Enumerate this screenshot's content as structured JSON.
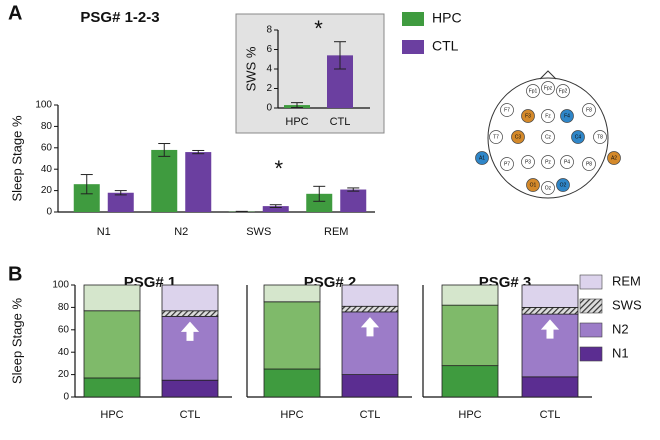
{
  "panel_labels": [
    "A",
    "B"
  ],
  "chart_data": [
    {
      "type": "grouped_bar",
      "title": "PSG# 1-2-3",
      "ylabel": "Sleep Stage %",
      "categories": [
        "N1",
        "N2",
        "SWS",
        "REM"
      ],
      "series": [
        {
          "name": "HPC",
          "color": "#3f9b3f",
          "values": [
            26,
            58,
            0.3,
            17
          ],
          "errors": [
            9,
            6,
            0.3,
            7
          ]
        },
        {
          "name": "CTL",
          "color": "#6b3fa0",
          "values": [
            18,
            56,
            5.5,
            21
          ],
          "errors": [
            2,
            1.5,
            1.3,
            1.5
          ]
        }
      ],
      "ylim": [
        0,
        100
      ],
      "yticks": [
        0,
        20,
        40,
        60,
        80,
        100
      ],
      "annotation": "*"
    },
    {
      "type": "bar",
      "ylabel": "SWS %",
      "categories": [
        "HPC",
        "CTL"
      ],
      "values": [
        0.3,
        5.4
      ],
      "errors": [
        0.25,
        1.4
      ],
      "colors": [
        "#3f9b3f",
        "#6b3fa0"
      ],
      "ylim": [
        0,
        8
      ],
      "yticks": [
        0,
        2,
        4,
        6,
        8
      ],
      "annotation": "*"
    },
    {
      "type": "stacked_bar",
      "title": "PSG# 1",
      "ylabel": "Sleep Stage %",
      "categories": [
        "HPC",
        "CTL"
      ],
      "series": [
        {
          "name": "N1",
          "colors": [
            "#3f9b3f",
            "#5b2d91"
          ],
          "values": [
            17,
            15
          ]
        },
        {
          "name": "N2",
          "colors": [
            "#7fba6a",
            "#9c7cc8"
          ],
          "values": [
            60,
            57
          ]
        },
        {
          "name": "SWS",
          "colors": [
            "#444444",
            "#444444"
          ],
          "pattern": "hatch",
          "values": [
            0,
            5
          ]
        },
        {
          "name": "REM",
          "colors": [
            "#d5e6cc",
            "#dcd3ec"
          ],
          "values": [
            23,
            23
          ]
        }
      ],
      "ylim": [
        0,
        100
      ],
      "yticks": [
        0,
        20,
        40,
        60,
        80,
        100
      ]
    },
    {
      "type": "stacked_bar",
      "title": "PSG# 2",
      "categories": [
        "HPC",
        "CTL"
      ],
      "series": [
        {
          "name": "N1",
          "colors": [
            "#3f9b3f",
            "#5b2d91"
          ],
          "values": [
            25,
            20
          ]
        },
        {
          "name": "N2",
          "colors": [
            "#7fba6a",
            "#9c7cc8"
          ],
          "values": [
            60,
            56
          ]
        },
        {
          "name": "SWS",
          "colors": [
            "#444444",
            "#444444"
          ],
          "pattern": "hatch",
          "values": [
            0,
            5
          ]
        },
        {
          "name": "REM",
          "colors": [
            "#d5e6cc",
            "#dcd3ec"
          ],
          "values": [
            15,
            19
          ]
        }
      ],
      "ylim": [
        0,
        100
      ]
    },
    {
      "type": "stacked_bar",
      "title": "PSG# 3",
      "categories": [
        "HPC",
        "CTL"
      ],
      "series": [
        {
          "name": "N1",
          "colors": [
            "#3f9b3f",
            "#5b2d91"
          ],
          "values": [
            28,
            18
          ]
        },
        {
          "name": "N2",
          "colors": [
            "#7fba6a",
            "#9c7cc8"
          ],
          "values": [
            54,
            56
          ]
        },
        {
          "name": "SWS",
          "colors": [
            "#444444",
            "#444444"
          ],
          "pattern": "hatch",
          "values": [
            0,
            6
          ]
        },
        {
          "name": "REM",
          "colors": [
            "#d5e6cc",
            "#dcd3ec"
          ],
          "values": [
            18,
            20
          ]
        }
      ],
      "ylim": [
        0,
        100
      ]
    }
  ],
  "eeg": {
    "electrodes": [
      {
        "label": "Fp1",
        "color": "#ffffff"
      },
      {
        "label": "Fpz",
        "color": "#ffffff"
      },
      {
        "label": "Fp2",
        "color": "#ffffff"
      },
      {
        "label": "F7",
        "color": "#ffffff"
      },
      {
        "label": "F3",
        "color": "#d4892a"
      },
      {
        "label": "Fz",
        "color": "#ffffff"
      },
      {
        "label": "F4",
        "color": "#2f86c8"
      },
      {
        "label": "F8",
        "color": "#ffffff"
      },
      {
        "label": "T7",
        "color": "#ffffff"
      },
      {
        "label": "C3",
        "color": "#d4892a"
      },
      {
        "label": "Cz",
        "color": "#ffffff"
      },
      {
        "label": "C4",
        "color": "#2f86c8"
      },
      {
        "label": "T8",
        "color": "#ffffff"
      },
      {
        "label": "A1",
        "color": "#2f86c8"
      },
      {
        "label": "A2",
        "color": "#d4892a"
      },
      {
        "label": "P7",
        "color": "#ffffff"
      },
      {
        "label": "P3",
        "color": "#ffffff"
      },
      {
        "label": "Pz",
        "color": "#ffffff"
      },
      {
        "label": "P4",
        "color": "#ffffff"
      },
      {
        "label": "P8",
        "color": "#ffffff"
      },
      {
        "label": "O1",
        "color": "#d4892a"
      },
      {
        "label": "Oz",
        "color": "#ffffff"
      },
      {
        "label": "O2",
        "color": "#2f86c8"
      }
    ]
  }
}
